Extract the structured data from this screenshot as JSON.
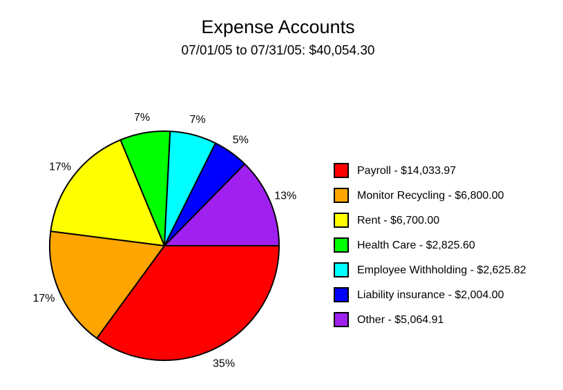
{
  "chart_data": {
    "type": "pie",
    "title": "Expense Accounts",
    "subtitle": "07/01/05 to 07/31/05: $40,054.30",
    "slices": [
      {
        "label": "Payroll - $14,033.97",
        "value": 14033.97,
        "percent_label": "35%",
        "color": "#ff0000"
      },
      {
        "label": "Monitor Recycling - $6,800.00",
        "value": 6800.0,
        "percent_label": "17%",
        "color": "#ffa500"
      },
      {
        "label": "Rent - $6,700.00",
        "value": 6700.0,
        "percent_label": "17%",
        "color": "#ffff00"
      },
      {
        "label": "Health Care - $2,825.60",
        "value": 2825.6,
        "percent_label": "7%",
        "color": "#00ff00"
      },
      {
        "label": "Employee Withholding - $2,625.82",
        "value": 2625.82,
        "percent_label": "7%",
        "color": "#00ffff"
      },
      {
        "label": "Liability insurance - $2,004.00",
        "value": 2004.0,
        "percent_label": "5%",
        "color": "#0000ff"
      },
      {
        "label": "Other - $5,064.91",
        "value": 5064.91,
        "percent_label": "13%",
        "color": "#a020f0"
      }
    ],
    "legend_position": "right"
  }
}
